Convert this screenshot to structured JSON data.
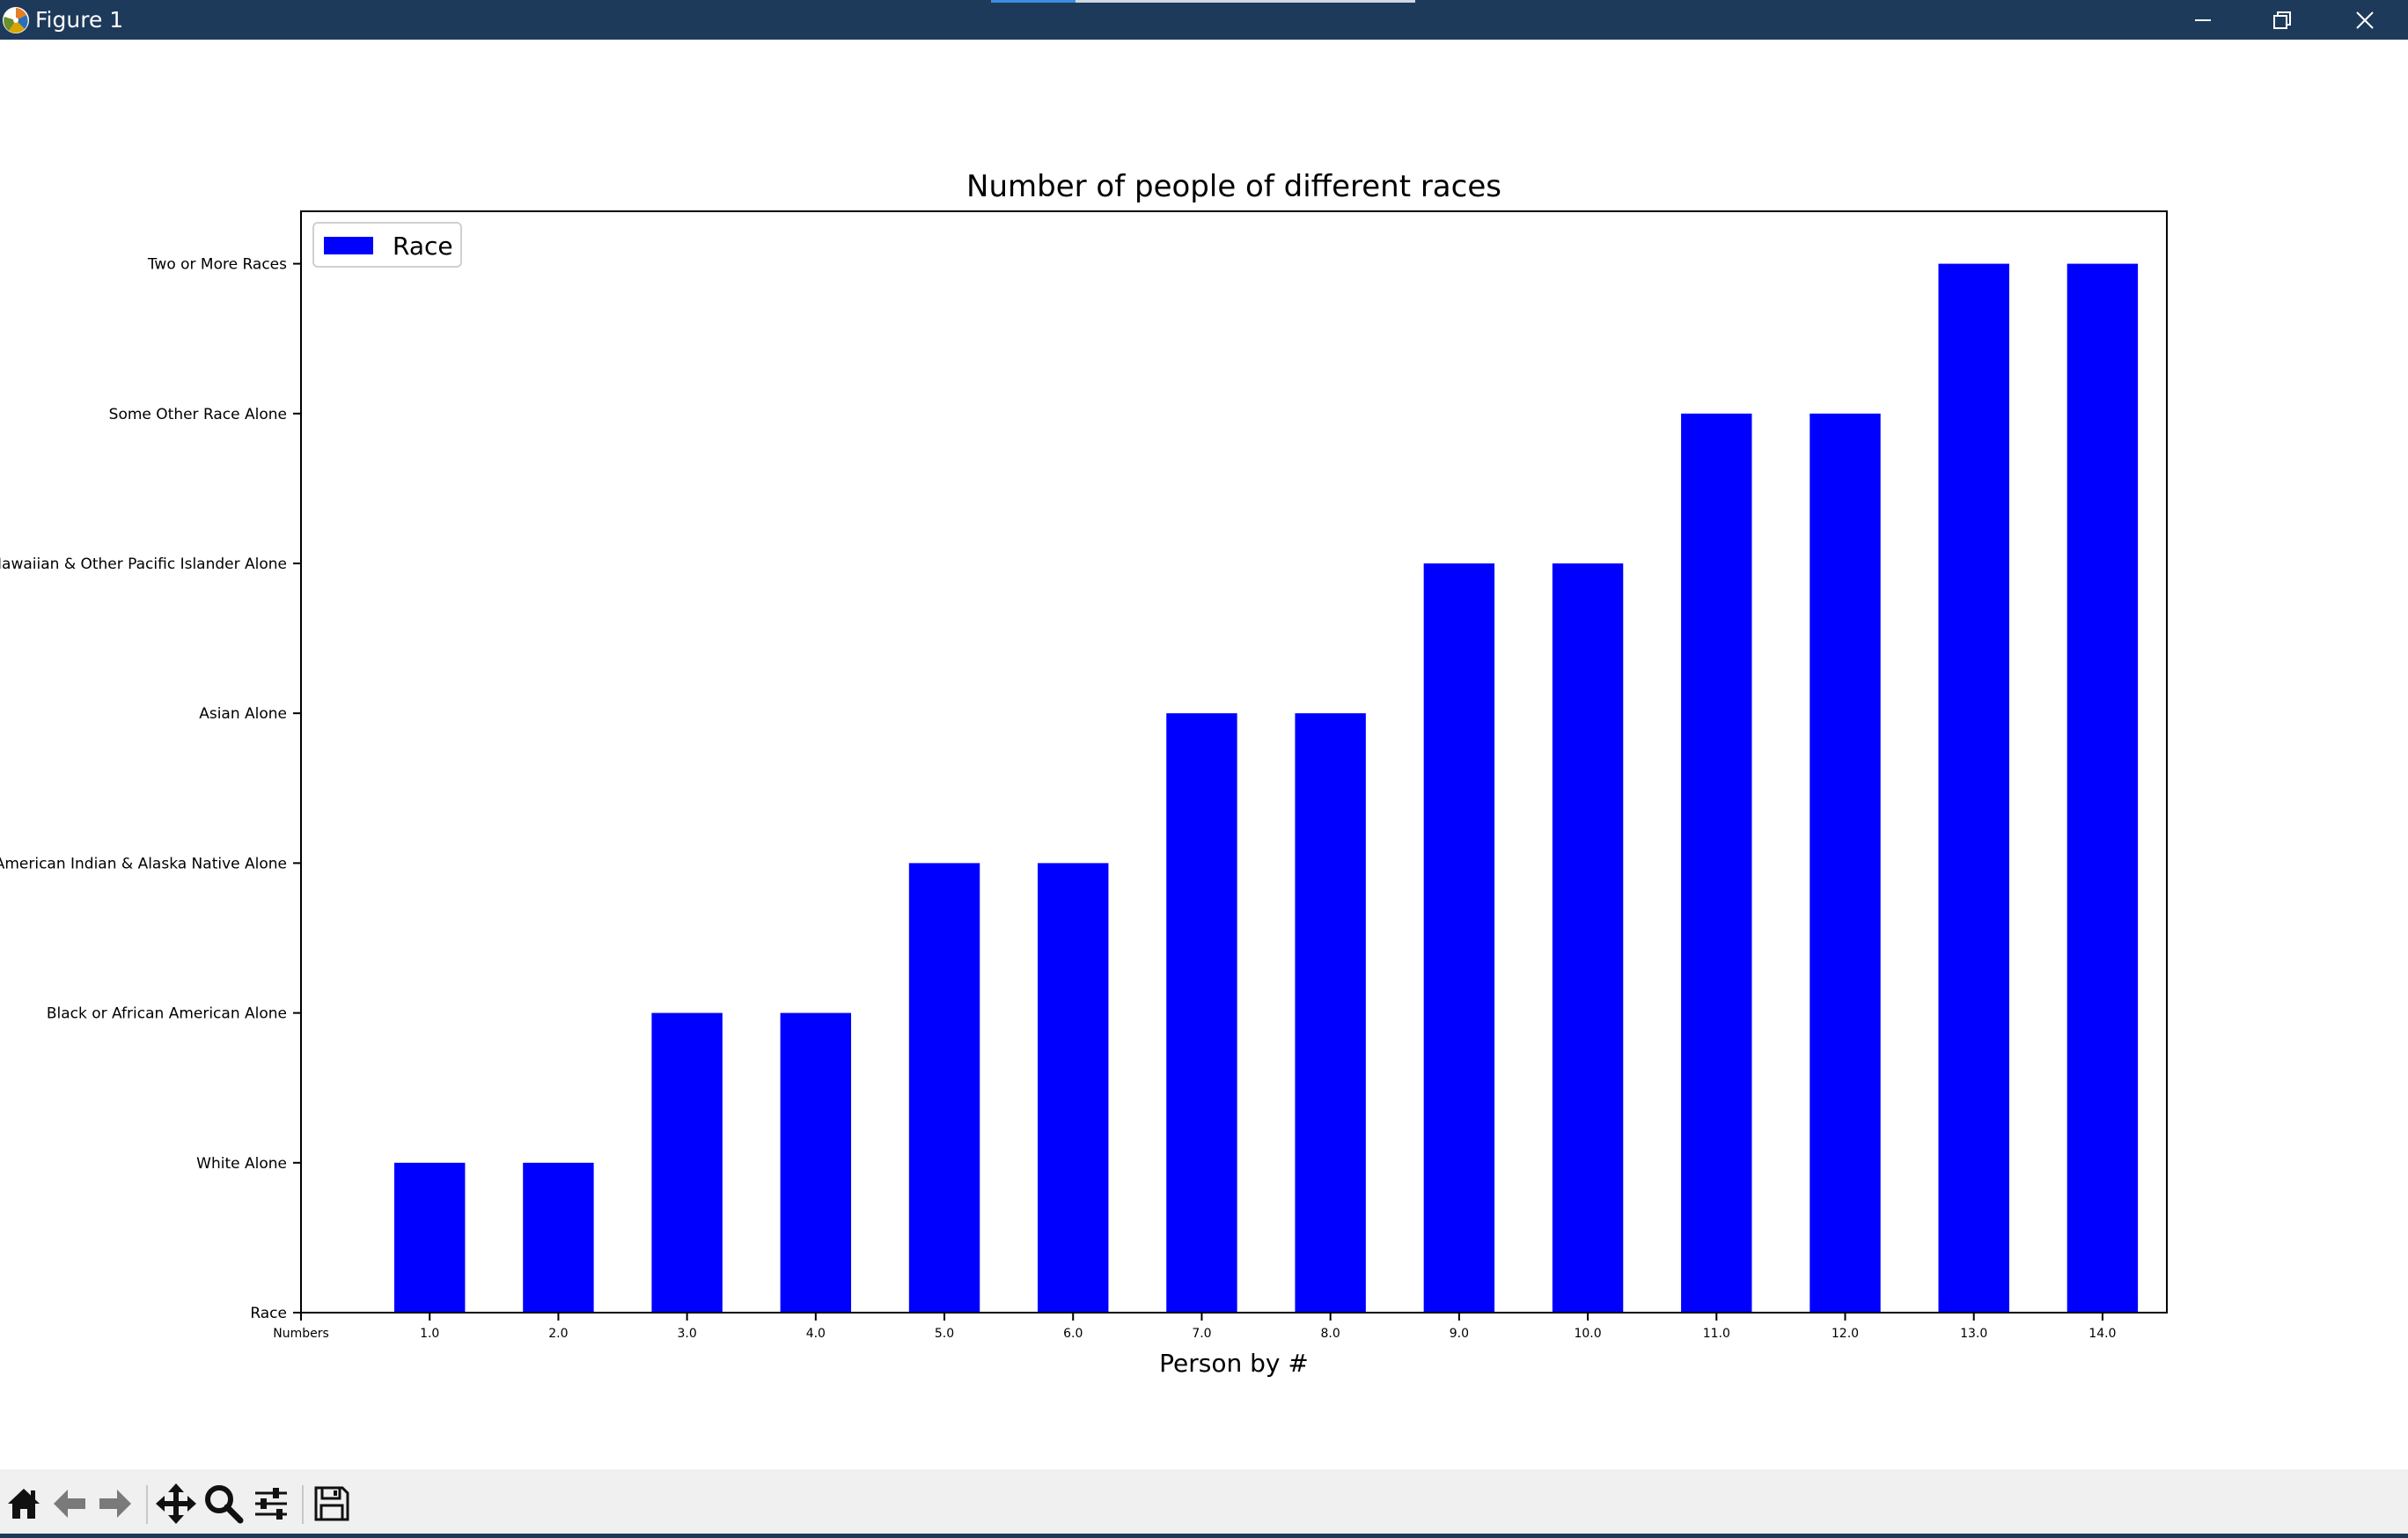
{
  "window": {
    "title": "Figure 1",
    "titlebar_color": "#1e3a5a",
    "controls": [
      "minimize-icon",
      "restore-icon",
      "close-icon"
    ]
  },
  "toolbar": {
    "buttons": [
      {
        "name": "home",
        "icon": "home-icon"
      },
      {
        "name": "back",
        "icon": "arrow-left-icon"
      },
      {
        "name": "forward",
        "icon": "arrow-right-icon"
      },
      {
        "name": "pan",
        "icon": "move-icon"
      },
      {
        "name": "zoom",
        "icon": "magnifier-icon"
      },
      {
        "name": "configure-subplots",
        "icon": "sliders-icon"
      },
      {
        "name": "save",
        "icon": "floppy-disk-icon"
      }
    ]
  },
  "chart_data": {
    "type": "bar",
    "title": "Number of people of different races",
    "xlabel": "Person by #",
    "ylabel": "",
    "categories": [
      "1.0",
      "2.0",
      "3.0",
      "4.0",
      "5.0",
      "6.0",
      "7.0",
      "8.0",
      "9.0",
      "10.0",
      "11.0",
      "12.0",
      "13.0",
      "14.0"
    ],
    "x_origin_label": "Numbers",
    "y_tick_labels": [
      "Race",
      "White Alone",
      "Black or African American Alone",
      "American Indian & Alaska Native Alone",
      "Asian Alone",
      "Hawaiian & Other Pacific Islander Alone",
      "Some Other Race Alone",
      "Two or More Races"
    ],
    "series": [
      {
        "name": "Race",
        "color": "#0000ff",
        "values": [
          1,
          1,
          2,
          2,
          3,
          3,
          4,
          4,
          5,
          5,
          6,
          6,
          7,
          7
        ]
      }
    ],
    "xlim": [
      0,
      14.5
    ],
    "ylim": [
      0,
      7.35
    ],
    "legend": "top-left",
    "grid": false
  }
}
